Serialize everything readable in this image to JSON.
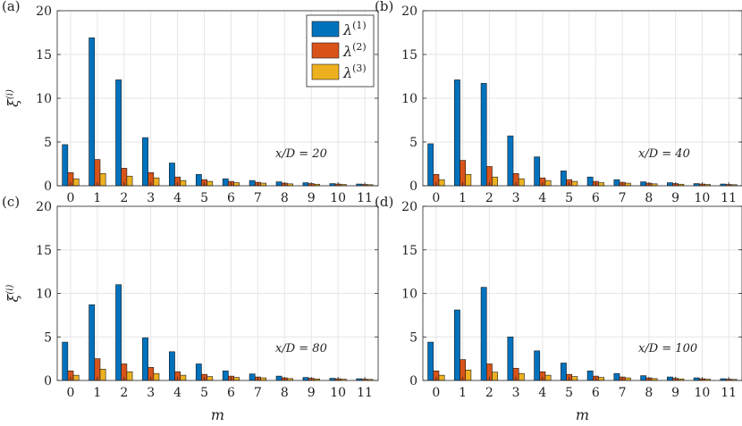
{
  "chart_data": [
    {
      "panel_label": "(a)",
      "type": "bar",
      "categories": [
        "0",
        "1",
        "2",
        "3",
        "4",
        "5",
        "6",
        "7",
        "8",
        "9",
        "10",
        "11"
      ],
      "series": [
        {
          "name": "λ(1)",
          "values": [
            4.7,
            16.9,
            12.1,
            5.5,
            2.6,
            1.3,
            0.8,
            0.6,
            0.45,
            0.35,
            0.25,
            0.2
          ]
        },
        {
          "name": "λ(2)",
          "values": [
            1.5,
            3.0,
            2.0,
            1.5,
            1.0,
            0.7,
            0.5,
            0.4,
            0.3,
            0.25,
            0.2,
            0.15
          ]
        },
        {
          "name": "λ(3)",
          "values": [
            0.8,
            1.4,
            1.1,
            0.9,
            0.6,
            0.5,
            0.35,
            0.3,
            0.22,
            0.18,
            0.15,
            0.12
          ]
        }
      ],
      "annotation": "x/D = 20",
      "ylim": [
        0,
        20
      ],
      "yticks": [
        "0",
        "5",
        "10",
        "15",
        "20"
      ],
      "ylabel": "ξ(i)",
      "xlabel": "",
      "show_ylabel": true,
      "show_xlabel": false,
      "show_xticks": true,
      "grid": true
    },
    {
      "panel_label": "(b)",
      "type": "bar",
      "categories": [
        "0",
        "1",
        "2",
        "3",
        "4",
        "5",
        "6",
        "7",
        "8",
        "9",
        "10",
        "11"
      ],
      "series": [
        {
          "name": "λ(1)",
          "values": [
            4.8,
            12.1,
            11.7,
            5.7,
            3.3,
            1.7,
            1.0,
            0.7,
            0.45,
            0.35,
            0.25,
            0.2
          ]
        },
        {
          "name": "λ(2)",
          "values": [
            1.3,
            2.9,
            2.2,
            1.4,
            0.9,
            0.7,
            0.5,
            0.4,
            0.3,
            0.25,
            0.2,
            0.15
          ]
        },
        {
          "name": "λ(3)",
          "values": [
            0.7,
            1.3,
            1.0,
            0.8,
            0.6,
            0.5,
            0.35,
            0.3,
            0.22,
            0.18,
            0.15,
            0.12
          ]
        }
      ],
      "annotation": "x/D = 40",
      "ylim": [
        0,
        20
      ],
      "yticks": [
        "0",
        "5",
        "10",
        "15",
        "20"
      ],
      "ylabel": "ξ(i)",
      "xlabel": "",
      "show_ylabel": false,
      "show_xlabel": false,
      "show_xticks": true,
      "grid": true
    },
    {
      "panel_label": "(c)",
      "type": "bar",
      "categories": [
        "0",
        "1",
        "2",
        "3",
        "4",
        "5",
        "6",
        "7",
        "8",
        "9",
        "10",
        "11"
      ],
      "series": [
        {
          "name": "λ(1)",
          "values": [
            4.4,
            8.7,
            11.0,
            4.9,
            3.3,
            1.9,
            1.1,
            0.75,
            0.5,
            0.35,
            0.25,
            0.2
          ]
        },
        {
          "name": "λ(2)",
          "values": [
            1.1,
            2.5,
            1.9,
            1.5,
            1.0,
            0.7,
            0.5,
            0.4,
            0.3,
            0.25,
            0.2,
            0.15
          ]
        },
        {
          "name": "λ(3)",
          "values": [
            0.6,
            1.3,
            1.0,
            0.8,
            0.6,
            0.45,
            0.35,
            0.3,
            0.22,
            0.18,
            0.15,
            0.12
          ]
        }
      ],
      "annotation": "x/D = 80",
      "ylim": [
        0,
        20
      ],
      "yticks": [
        "0",
        "5",
        "10",
        "15",
        "20"
      ],
      "ylabel": "ξ(i)",
      "xlabel": "m",
      "show_ylabel": true,
      "show_xlabel": true,
      "show_xticks": true,
      "grid": true
    },
    {
      "panel_label": "(d)",
      "type": "bar",
      "categories": [
        "0",
        "1",
        "2",
        "3",
        "4",
        "5",
        "6",
        "7",
        "8",
        "9",
        "10",
        "11"
      ],
      "series": [
        {
          "name": "λ(1)",
          "values": [
            4.4,
            8.1,
            10.7,
            5.0,
            3.4,
            2.0,
            1.1,
            0.8,
            0.55,
            0.4,
            0.3,
            0.2
          ]
        },
        {
          "name": "λ(2)",
          "values": [
            1.1,
            2.4,
            1.9,
            1.4,
            1.0,
            0.7,
            0.5,
            0.4,
            0.3,
            0.25,
            0.2,
            0.15
          ]
        },
        {
          "name": "λ(3)",
          "values": [
            0.6,
            1.2,
            0.95,
            0.8,
            0.6,
            0.45,
            0.35,
            0.3,
            0.22,
            0.18,
            0.15,
            0.12
          ]
        }
      ],
      "annotation": "x/D = 100",
      "ylim": [
        0,
        20
      ],
      "yticks": [
        "0",
        "5",
        "10",
        "15",
        "20"
      ],
      "ylabel": "ξ(i)",
      "xlabel": "m",
      "show_ylabel": false,
      "show_xlabel": true,
      "show_xticks": true,
      "grid": true
    }
  ],
  "legend": {
    "placement": "top-right of panel (a)",
    "entries": [
      {
        "symbol": "λ",
        "sup": "(1)",
        "color": "#0072BD"
      },
      {
        "symbol": "λ",
        "sup": "(2)",
        "color": "#D95319"
      },
      {
        "symbol": "λ",
        "sup": "(3)",
        "color": "#EDB120"
      }
    ]
  },
  "colors": {
    "series": [
      "#0072BD",
      "#D95319",
      "#EDB120"
    ],
    "bar_edge": "#1a1a1a",
    "grid": "#e6e6e6",
    "axis": "#262626"
  }
}
